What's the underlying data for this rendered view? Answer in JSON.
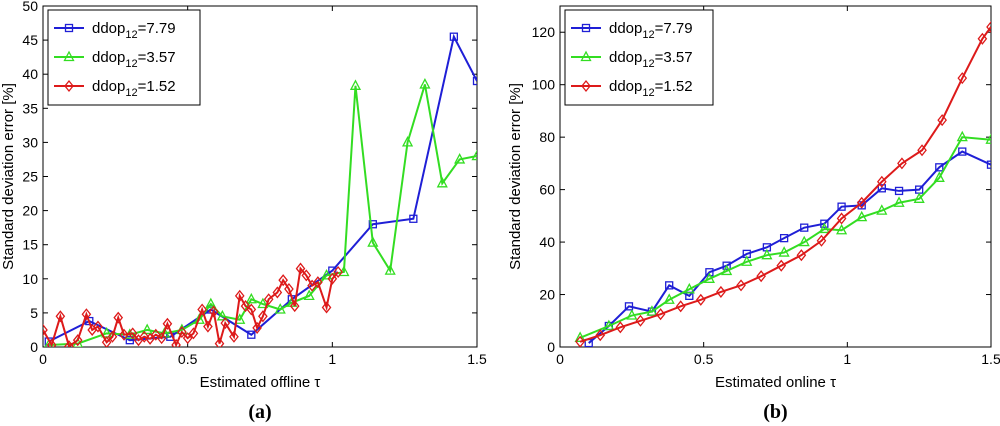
{
  "chart_data": [
    {
      "type": "line",
      "panel_label": "(a)",
      "xlabel": "Estimated offline τ",
      "ylabel": "Standard deviation error [%]",
      "xlim": [
        0,
        1.5
      ],
      "ylim": [
        0,
        50
      ],
      "xticks": [
        0,
        0.5,
        1,
        1.5
      ],
      "xtick_labels": [
        "0",
        "0.5",
        "1",
        "1.5"
      ],
      "yticks": [
        0,
        5,
        10,
        15,
        20,
        25,
        30,
        35,
        40,
        45,
        50
      ],
      "ytick_labels": [
        "0",
        "5",
        "10",
        "15",
        "20",
        "25",
        "30",
        "35",
        "40",
        "45",
        "50"
      ],
      "legend_position": "top-left",
      "series": [
        {
          "name": "ddop12=7.79",
          "legend_prefix": "ddop",
          "legend_sub": "12",
          "legend_suffix": "=7.79",
          "color": "#1f1fd6",
          "marker": "square",
          "points": [
            [
              0.02,
              0.8
            ],
            [
              0.16,
              3.8
            ],
            [
              0.3,
              1.0
            ],
            [
              0.44,
              1.5
            ],
            [
              0.58,
              5.5
            ],
            [
              0.72,
              1.8
            ],
            [
              0.86,
              7.0
            ],
            [
              1.0,
              11.2
            ],
            [
              1.14,
              18.0
            ],
            [
              1.28,
              18.8
            ],
            [
              1.42,
              45.5
            ],
            [
              1.5,
              39.0
            ]
          ]
        },
        {
          "name": "ddop12=3.57",
          "legend_prefix": "ddop",
          "legend_sub": "12",
          "legend_suffix": "=3.57",
          "color": "#33dd22",
          "marker": "triangle",
          "points": [
            [
              0.02,
              0.3
            ],
            [
              0.12,
              0.5
            ],
            [
              0.22,
              2.0
            ],
            [
              0.3,
              1.8
            ],
            [
              0.36,
              2.5
            ],
            [
              0.42,
              2.0
            ],
            [
              0.48,
              2.5
            ],
            [
              0.54,
              4.0
            ],
            [
              0.58,
              6.3
            ],
            [
              0.62,
              4.5
            ],
            [
              0.68,
              4.0
            ],
            [
              0.72,
              7.0
            ],
            [
              0.76,
              6.3
            ],
            [
              0.82,
              5.5
            ],
            [
              0.86,
              6.5
            ],
            [
              0.92,
              7.5
            ],
            [
              0.98,
              10.5
            ],
            [
              1.04,
              11.0
            ],
            [
              1.08,
              38.3
            ],
            [
              1.14,
              15.3
            ],
            [
              1.2,
              11.2
            ],
            [
              1.26,
              30.0
            ],
            [
              1.32,
              38.5
            ],
            [
              1.38,
              24.0
            ],
            [
              1.44,
              27.5
            ],
            [
              1.5,
              28.0
            ]
          ]
        },
        {
          "name": "ddop12=1.52",
          "legend_prefix": "ddop",
          "legend_sub": "12",
          "legend_suffix": "=1.52",
          "color": "#dd1a1a",
          "marker": "diamond",
          "points": [
            [
              0.0,
              2.5
            ],
            [
              0.03,
              0.3
            ],
            [
              0.06,
              4.5
            ],
            [
              0.09,
              0.1
            ],
            [
              0.12,
              1.0
            ],
            [
              0.15,
              4.8
            ],
            [
              0.17,
              2.5
            ],
            [
              0.19,
              3.0
            ],
            [
              0.22,
              0.7
            ],
            [
              0.24,
              1.5
            ],
            [
              0.26,
              4.3
            ],
            [
              0.28,
              1.8
            ],
            [
              0.31,
              2.0
            ],
            [
              0.33,
              1.0
            ],
            [
              0.35,
              1.5
            ],
            [
              0.37,
              1.2
            ],
            [
              0.39,
              1.8
            ],
            [
              0.41,
              1.3
            ],
            [
              0.43,
              3.4
            ],
            [
              0.46,
              0.3
            ],
            [
              0.48,
              2.2
            ],
            [
              0.5,
              1.3
            ],
            [
              0.52,
              2.0
            ],
            [
              0.55,
              5.5
            ],
            [
              0.57,
              3.0
            ],
            [
              0.59,
              5.2
            ],
            [
              0.61,
              0.5
            ],
            [
              0.63,
              3.5
            ],
            [
              0.66,
              1.5
            ],
            [
              0.68,
              7.5
            ],
            [
              0.7,
              6.0
            ],
            [
              0.72,
              5.5
            ],
            [
              0.74,
              2.8
            ],
            [
              0.76,
              4.5
            ],
            [
              0.78,
              7.0
            ],
            [
              0.81,
              8.0
            ],
            [
              0.83,
              9.8
            ],
            [
              0.85,
              8.5
            ],
            [
              0.87,
              6.0
            ],
            [
              0.89,
              11.5
            ],
            [
              0.91,
              10.5
            ],
            [
              0.93,
              9.0
            ],
            [
              0.95,
              9.5
            ],
            [
              0.98,
              5.8
            ],
            [
              1.0,
              10.0
            ],
            [
              1.02,
              11.0
            ]
          ]
        }
      ]
    },
    {
      "type": "line",
      "panel_label": "(b)",
      "xlabel": "Estimated online τ",
      "ylabel": "Standard deviation error [%]",
      "xlim": [
        0,
        1.5
      ],
      "ylim": [
        0,
        130
      ],
      "xticks": [
        0,
        0.5,
        1,
        1.5
      ],
      "xtick_labels": [
        "0",
        "0.5",
        "1",
        "1.5"
      ],
      "yticks": [
        0,
        20,
        40,
        60,
        80,
        100,
        120
      ],
      "ytick_labels": [
        "0",
        "20",
        "40",
        "60",
        "80",
        "100",
        "120"
      ],
      "legend_position": "top-left",
      "series": [
        {
          "name": "ddop12=7.79",
          "legend_prefix": "ddop",
          "legend_sub": "12",
          "legend_suffix": "=7.79",
          "color": "#1f1fd6",
          "marker": "square",
          "points": [
            [
              0.1,
              1.5
            ],
            [
              0.17,
              8.0
            ],
            [
              0.24,
              15.5
            ],
            [
              0.32,
              13.5
            ],
            [
              0.38,
              23.5
            ],
            [
              0.45,
              19.5
            ],
            [
              0.52,
              28.5
            ],
            [
              0.58,
              31.0
            ],
            [
              0.65,
              35.5
            ],
            [
              0.72,
              38.0
            ],
            [
              0.78,
              41.5
            ],
            [
              0.85,
              45.5
            ],
            [
              0.92,
              47.0
            ],
            [
              0.98,
              53.5
            ],
            [
              1.05,
              54.0
            ],
            [
              1.12,
              60.5
            ],
            [
              1.18,
              59.5
            ],
            [
              1.25,
              60.0
            ],
            [
              1.32,
              68.5
            ],
            [
              1.4,
              74.5
            ],
            [
              1.5,
              69.5
            ]
          ]
        },
        {
          "name": "ddop12=3.57",
          "legend_prefix": "ddop",
          "legend_sub": "12",
          "legend_suffix": "=3.57",
          "color": "#33dd22",
          "marker": "triangle",
          "points": [
            [
              0.07,
              3.5
            ],
            [
              0.17,
              8.0
            ],
            [
              0.25,
              12.0
            ],
            [
              0.32,
              13.5
            ],
            [
              0.38,
              18.0
            ],
            [
              0.45,
              22.0
            ],
            [
              0.52,
              26.0
            ],
            [
              0.58,
              29.0
            ],
            [
              0.65,
              32.5
            ],
            [
              0.72,
              35.0
            ],
            [
              0.78,
              36.0
            ],
            [
              0.85,
              40.0
            ],
            [
              0.92,
              45.0
            ],
            [
              0.98,
              44.5
            ],
            [
              1.05,
              49.5
            ],
            [
              1.12,
              52.0
            ],
            [
              1.18,
              55.0
            ],
            [
              1.25,
              56.5
            ],
            [
              1.32,
              64.5
            ],
            [
              1.4,
              80.0
            ],
            [
              1.5,
              79.0
            ]
          ]
        },
        {
          "name": "ddop12=1.52",
          "legend_prefix": "ddop",
          "legend_sub": "12",
          "legend_suffix": "=1.52",
          "color": "#dd1a1a",
          "marker": "diamond",
          "points": [
            [
              0.07,
              2.0
            ],
            [
              0.14,
              4.5
            ],
            [
              0.21,
              7.5
            ],
            [
              0.28,
              10.0
            ],
            [
              0.35,
              12.5
            ],
            [
              0.42,
              15.5
            ],
            [
              0.49,
              18.0
            ],
            [
              0.56,
              21.0
            ],
            [
              0.63,
              23.5
            ],
            [
              0.7,
              27.0
            ],
            [
              0.77,
              31.0
            ],
            [
              0.84,
              35.0
            ],
            [
              0.91,
              40.5
            ],
            [
              0.98,
              49.0
            ],
            [
              1.05,
              55.0
            ],
            [
              1.12,
              63.0
            ],
            [
              1.19,
              70.0
            ],
            [
              1.26,
              75.0
            ],
            [
              1.33,
              86.5
            ],
            [
              1.4,
              102.5
            ],
            [
              1.47,
              117.5
            ],
            [
              1.5,
              122.0
            ]
          ]
        }
      ]
    }
  ]
}
